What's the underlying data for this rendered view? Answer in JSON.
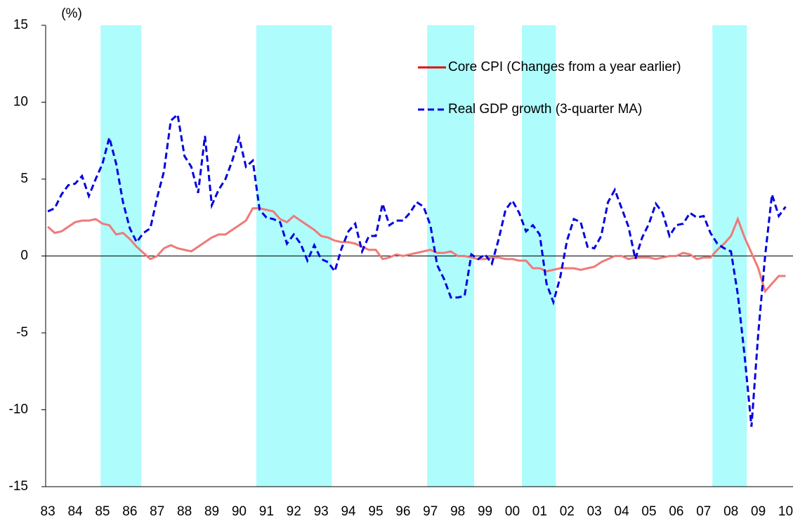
{
  "chart_data": {
    "type": "line",
    "y_label": "(%)",
    "x": [
      1983,
      1983.25,
      1983.5,
      1983.75,
      1984,
      1984.25,
      1984.5,
      1984.75,
      1985,
      1985.25,
      1985.5,
      1985.75,
      1986,
      1986.25,
      1986.5,
      1986.75,
      1987,
      1987.25,
      1987.5,
      1987.75,
      1988,
      1988.25,
      1988.5,
      1988.75,
      1989,
      1989.25,
      1989.5,
      1989.75,
      1990,
      1990.25,
      1990.5,
      1990.75,
      1991,
      1991.25,
      1991.5,
      1991.75,
      1992,
      1992.25,
      1992.5,
      1992.75,
      1993,
      1993.25,
      1993.5,
      1993.75,
      1994,
      1994.25,
      1994.5,
      1994.75,
      1995,
      1995.25,
      1995.5,
      1995.75,
      1996,
      1996.25,
      1996.5,
      1996.75,
      1997,
      1997.25,
      1997.5,
      1997.75,
      1998,
      1998.25,
      1998.5,
      1998.75,
      1999,
      1999.25,
      1999.5,
      1999.75,
      2000,
      2000.25,
      2000.5,
      2000.75,
      2001,
      2001.25,
      2001.5,
      2001.75,
      2002,
      2002.25,
      2002.5,
      2002.75,
      2003,
      2003.25,
      2003.5,
      2003.75,
      2004,
      2004.25,
      2004.5,
      2004.75,
      2005,
      2005.25,
      2005.5,
      2005.75,
      2006,
      2006.25,
      2006.5,
      2006.75,
      2007,
      2007.25,
      2007.5,
      2007.75,
      2008,
      2008.25,
      2008.5,
      2008.75,
      2009,
      2009.25,
      2009.5,
      2009.75,
      2010
    ],
    "series": [
      {
        "name": "Core CPI (Changes from a year earlier)",
        "color": "#ef7a78",
        "legend_color": "#e01010",
        "dashed": false,
        "values": [
          1.9,
          1.5,
          1.6,
          1.9,
          2.2,
          2.3,
          2.3,
          2.4,
          2.1,
          2.0,
          1.4,
          1.5,
          1.1,
          0.6,
          0.2,
          -0.2,
          0,
          0.5,
          0.7,
          0.5,
          0.4,
          0.3,
          0.6,
          0.9,
          1.2,
          1.4,
          1.4,
          1.7,
          2.0,
          2.3,
          3.1,
          3.1,
          3.0,
          2.9,
          2.4,
          2.2,
          2.6,
          2.3,
          2.0,
          1.7,
          1.3,
          1.2,
          1.0,
          0.9,
          0.9,
          0.8,
          0.6,
          0.4,
          0.4,
          -0.2,
          -0.1,
          0.1,
          0,
          0.1,
          0.2,
          0.3,
          0.4,
          0.2,
          0.2,
          0.3,
          0,
          0,
          -0.1,
          -0.2,
          -0.2,
          -0.1,
          -0.1,
          -0.2,
          -0.2,
          -0.3,
          -0.3,
          -0.8,
          -0.8,
          -1.0,
          -0.9,
          -0.8,
          -0.8,
          -0.8,
          -0.9,
          -0.8,
          -0.7,
          -0.4,
          -0.2,
          0,
          0,
          -0.2,
          -0.1,
          -0.1,
          -0.1,
          -0.2,
          -0.1,
          0,
          0,
          0.2,
          0.1,
          -0.2,
          -0.1,
          -0.1,
          0.4,
          0.8,
          1.3,
          2.4,
          1.2,
          0.2,
          -0.8,
          -2.3,
          -1.8,
          -1.3,
          -1.3
        ]
      },
      {
        "name": "Real GDP growth (3-quarter  MA)",
        "color": "#0000e0",
        "legend_color": "#0000e0",
        "dashed": true,
        "values": [
          2.9,
          3.1,
          4.0,
          4.6,
          4.7,
          5.2,
          3.9,
          5.0,
          6.0,
          7.7,
          6.0,
          3.5,
          1.8,
          0.9,
          1.5,
          1.8,
          3.8,
          5.5,
          8.8,
          9.2,
          6.5,
          5.8,
          4.1,
          7.8,
          3.3,
          4.3,
          5.0,
          6.2,
          7.7,
          5.8,
          6.2,
          3.0,
          2.5,
          2.4,
          2.2,
          0.8,
          1.4,
          0.8,
          -0.3,
          0.7,
          -0.2,
          -0.4,
          -1.0,
          0.5,
          1.6,
          2.1,
          0.3,
          1.3,
          1.3,
          3.4,
          2.0,
          2.3,
          2.3,
          2.8,
          3.5,
          3.2,
          2.0,
          -0.6,
          -1.5,
          -2.7,
          -2.7,
          -2.6,
          0.1,
          -0.2,
          0.1,
          -0.5,
          1.1,
          3.0,
          3.6,
          2.8,
          1.6,
          2.0,
          1.4,
          -1.8,
          -3.0,
          -1.4,
          1.0,
          2.4,
          2.2,
          0.6,
          0.5,
          1.3,
          3.5,
          4.3,
          3.1,
          1.9,
          -0.2,
          1.2,
          2.1,
          3.4,
          2.8,
          1.3,
          2.0,
          2.1,
          2.8,
          2.5,
          2.6,
          1.5,
          0.8,
          0.5,
          0.3,
          -2.5,
          -6.5,
          -11.1,
          -5.0,
          0.0,
          4.0,
          2.6,
          3.2
        ]
      }
    ],
    "shading": [
      [
        1984.93,
        1986.42
      ],
      [
        1990.63,
        1993.39
      ],
      [
        1996.88,
        1998.6
      ],
      [
        2000.35,
        2001.59
      ],
      [
        2007.32,
        2008.58
      ]
    ],
    "shade_color": "#aefcfc",
    "xlim": [
      1982.92,
      2010.27
    ],
    "xticks": [
      {
        "value": 1983,
        "label": "83"
      },
      {
        "value": 1984,
        "label": "84"
      },
      {
        "value": 1985,
        "label": "85"
      },
      {
        "value": 1986,
        "label": "86"
      },
      {
        "value": 1987,
        "label": "87"
      },
      {
        "value": 1988,
        "label": "88"
      },
      {
        "value": 1989,
        "label": "89"
      },
      {
        "value": 1990,
        "label": "90"
      },
      {
        "value": 1991,
        "label": "91"
      },
      {
        "value": 1992,
        "label": "92"
      },
      {
        "value": 1993,
        "label": "93"
      },
      {
        "value": 1994,
        "label": "94"
      },
      {
        "value": 1995,
        "label": "95"
      },
      {
        "value": 1996,
        "label": "96"
      },
      {
        "value": 1997,
        "label": "97"
      },
      {
        "value": 1998,
        "label": "98"
      },
      {
        "value": 1999,
        "label": "99"
      },
      {
        "value": 2000,
        "label": "00"
      },
      {
        "value": 2001,
        "label": "01"
      },
      {
        "value": 2002,
        "label": "02"
      },
      {
        "value": 2003,
        "label": "03"
      },
      {
        "value": 2004,
        "label": "04"
      },
      {
        "value": 2005,
        "label": "05"
      },
      {
        "value": 2006,
        "label": "06"
      },
      {
        "value": 2007,
        "label": "07"
      },
      {
        "value": 2008,
        "label": "08"
      },
      {
        "value": 2009,
        "label": "09"
      },
      {
        "value": 2010,
        "label": "10"
      }
    ],
    "ylim": [
      -15,
      15
    ],
    "yticks": [
      15,
      10,
      5,
      0,
      -5,
      -10,
      -15
    ],
    "zero_line": true,
    "legend": "top-right"
  }
}
